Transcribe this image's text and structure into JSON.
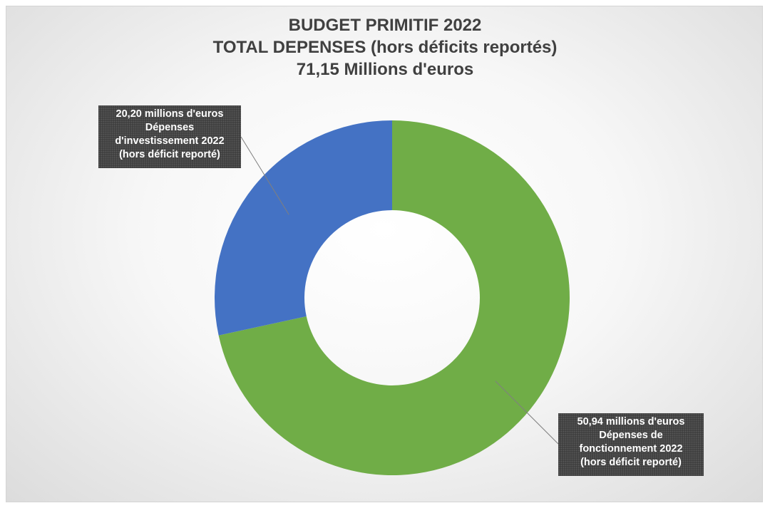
{
  "chart_data": {
    "type": "pie",
    "subtype": "donut",
    "title": [
      "BUDGET PRIMITIF 2022",
      "TOTAL DEPENSES (hors déficits reportés)",
      "71,15 Millions d'euros"
    ],
    "slices": [
      {
        "label_lines": [
          "50,94 millions d'euros",
          "Dépenses de",
          "fonctionnement 2022",
          "(hors déficit reporté)"
        ],
        "value": 50.94,
        "color": "#70ad47"
      },
      {
        "label_lines": [
          "20,20 millions d'euros",
          "Dépenses",
          "d'investissement 2022",
          "(hors déficit reporté)"
        ],
        "value": 20.2,
        "color": "#4472c4"
      }
    ],
    "start_angle": "12 o'clock",
    "direction": "clockwise"
  }
}
